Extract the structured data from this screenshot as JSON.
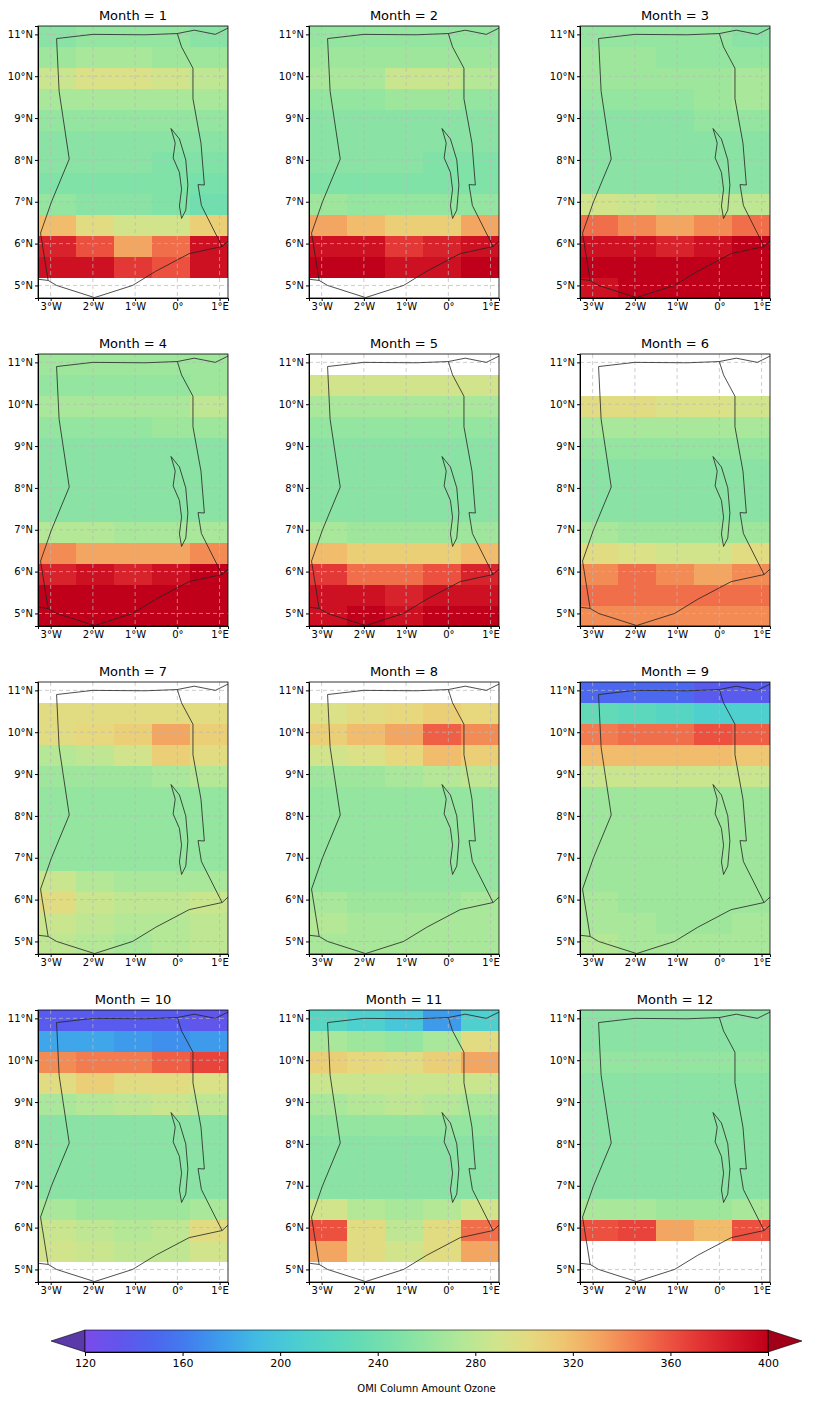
{
  "chart_data": {
    "type": "heatmap",
    "xlim": [
      -3.3,
      1.2
    ],
    "ylim": [
      4.7,
      11.2
    ],
    "xticks": [
      {
        "value": -3,
        "label": "3°W"
      },
      {
        "value": -2,
        "label": "2°W"
      },
      {
        "value": -1,
        "label": "1°W"
      },
      {
        "value": 0,
        "label": "0°"
      },
      {
        "value": 1,
        "label": "1°E"
      }
    ],
    "yticks": [
      {
        "value": 5,
        "label": "5°N"
      },
      {
        "value": 6,
        "label": "6°N"
      },
      {
        "value": 7,
        "label": "7°N"
      },
      {
        "value": 8,
        "label": "8°N"
      },
      {
        "value": 9,
        "label": "9°N"
      },
      {
        "value": 10,
        "label": "10°N"
      },
      {
        "value": 11,
        "label": "11°N"
      }
    ],
    "grid": true,
    "lon_edges": [
      -3.3,
      -2.4,
      -1.5,
      -0.6,
      0.3,
      1.2
    ],
    "lat_edges": [
      4.7,
      5.2,
      5.7,
      6.2,
      6.7,
      7.2,
      7.7,
      8.2,
      8.7,
      9.2,
      9.7,
      10.2,
      10.7,
      11.2
    ],
    "colorbar": {
      "label": "OMI Column Amount Ozone",
      "lim": [
        120,
        400
      ],
      "ticks": [
        120,
        160,
        200,
        240,
        280,
        320,
        360,
        400
      ]
    },
    "panels": [
      {
        "title": "Month = 1",
        "values": [
          [
            null,
            null,
            null,
            null,
            null
          ],
          [
            390,
            390,
            370,
            360,
            390
          ],
          [
            380,
            360,
            330,
            350,
            390
          ],
          [
            320,
            300,
            290,
            290,
            310
          ],
          [
            260,
            255,
            255,
            250,
            240
          ],
          [
            250,
            250,
            250,
            250,
            245
          ],
          [
            255,
            255,
            255,
            250,
            250
          ],
          [
            255,
            255,
            255,
            255,
            255
          ],
          [
            260,
            260,
            260,
            260,
            260
          ],
          [
            270,
            270,
            270,
            270,
            270
          ],
          [
            285,
            295,
            295,
            290,
            280
          ],
          [
            265,
            270,
            270,
            265,
            265
          ],
          [
            255,
            260,
            260,
            260,
            255
          ]
        ]
      },
      {
        "title": "Month = 2",
        "values": [
          [
            null,
            null,
            null,
            null,
            null
          ],
          [
            400,
            400,
            390,
            390,
            400
          ],
          [
            390,
            390,
            370,
            380,
            390
          ],
          [
            330,
            320,
            310,
            310,
            330
          ],
          [
            265,
            260,
            260,
            260,
            260
          ],
          [
            250,
            250,
            250,
            250,
            250
          ],
          [
            255,
            255,
            255,
            250,
            250
          ],
          [
            255,
            255,
            255,
            255,
            255
          ],
          [
            255,
            255,
            255,
            255,
            255
          ],
          [
            260,
            260,
            265,
            265,
            260
          ],
          [
            270,
            270,
            285,
            285,
            275
          ],
          [
            265,
            265,
            265,
            265,
            265
          ],
          [
            260,
            260,
            260,
            260,
            260
          ]
        ]
      },
      {
        "title": "Month = 3",
        "values": [
          [
            390,
            400,
            400,
            400,
            400
          ],
          [
            400,
            400,
            400,
            400,
            400
          ],
          [
            390,
            390,
            380,
            390,
            400
          ],
          [
            350,
            340,
            330,
            340,
            350
          ],
          [
            290,
            285,
            280,
            280,
            280
          ],
          [
            255,
            255,
            255,
            255,
            255
          ],
          [
            255,
            255,
            255,
            255,
            255
          ],
          [
            255,
            255,
            255,
            255,
            255
          ],
          [
            255,
            255,
            255,
            260,
            260
          ],
          [
            260,
            260,
            260,
            265,
            270
          ],
          [
            265,
            265,
            265,
            265,
            270
          ],
          [
            265,
            265,
            260,
            260,
            260
          ],
          [
            260,
            260,
            260,
            260,
            255
          ]
        ]
      },
      {
        "title": "Month = 4",
        "values": [
          [
            400,
            400,
            400,
            400,
            400
          ],
          [
            400,
            400,
            400,
            400,
            400
          ],
          [
            380,
            390,
            380,
            390,
            400
          ],
          [
            340,
            330,
            330,
            330,
            340
          ],
          [
            275,
            275,
            270,
            270,
            270
          ],
          [
            255,
            255,
            255,
            255,
            255
          ],
          [
            255,
            255,
            255,
            255,
            255
          ],
          [
            255,
            255,
            255,
            255,
            255
          ],
          [
            255,
            255,
            255,
            255,
            255
          ],
          [
            260,
            260,
            260,
            265,
            265
          ],
          [
            270,
            270,
            270,
            270,
            280
          ],
          [
            260,
            260,
            260,
            260,
            265
          ],
          [
            265,
            265,
            265,
            265,
            265
          ]
        ]
      },
      {
        "title": "Month = 5",
        "values": [
          [
            390,
            400,
            390,
            400,
            400
          ],
          [
            390,
            390,
            380,
            390,
            390
          ],
          [
            370,
            350,
            350,
            360,
            380
          ],
          [
            320,
            310,
            310,
            310,
            320
          ],
          [
            270,
            265,
            265,
            265,
            265
          ],
          [
            255,
            255,
            255,
            255,
            255
          ],
          [
            255,
            255,
            255,
            255,
            255
          ],
          [
            255,
            255,
            255,
            255,
            255
          ],
          [
            255,
            255,
            255,
            255,
            255
          ],
          [
            260,
            260,
            260,
            260,
            260
          ],
          [
            270,
            270,
            270,
            270,
            270
          ],
          [
            290,
            290,
            290,
            290,
            290
          ],
          [
            null,
            null,
            null,
            null,
            null
          ]
        ]
      },
      {
        "title": "Month = 6",
        "values": [
          [
            340,
            340,
            340,
            340,
            340
          ],
          [
            350,
            350,
            350,
            350,
            350
          ],
          [
            340,
            350,
            340,
            330,
            340
          ],
          [
            300,
            295,
            290,
            290,
            300
          ],
          [
            270,
            265,
            265,
            265,
            265
          ],
          [
            255,
            255,
            255,
            255,
            255
          ],
          [
            255,
            255,
            255,
            255,
            255
          ],
          [
            255,
            255,
            255,
            255,
            255
          ],
          [
            260,
            260,
            260,
            260,
            260
          ],
          [
            270,
            270,
            270,
            270,
            270
          ],
          [
            300,
            300,
            295,
            295,
            290
          ],
          [
            null,
            null,
            null,
            null,
            null
          ],
          [
            null,
            null,
            null,
            null,
            null
          ]
        ]
      },
      {
        "title": "Month = 7",
        "values": [
          [
            280,
            275,
            270,
            275,
            280
          ],
          [
            285,
            280,
            275,
            275,
            280
          ],
          [
            300,
            285,
            280,
            280,
            285
          ],
          [
            285,
            275,
            270,
            270,
            270
          ],
          [
            260,
            260,
            260,
            260,
            260
          ],
          [
            260,
            260,
            260,
            260,
            260
          ],
          [
            260,
            260,
            260,
            260,
            260
          ],
          [
            260,
            260,
            260,
            260,
            260
          ],
          [
            265,
            265,
            265,
            270,
            275
          ],
          [
            275,
            280,
            290,
            310,
            300
          ],
          [
            300,
            305,
            310,
            330,
            310
          ],
          [
            300,
            300,
            300,
            300,
            300
          ],
          [
            null,
            null,
            null,
            null,
            null
          ]
        ]
      },
      {
        "title": "Month = 8",
        "values": [
          [
            270,
            270,
            270,
            270,
            270
          ],
          [
            275,
            270,
            270,
            270,
            270
          ],
          [
            270,
            265,
            265,
            265,
            270
          ],
          [
            260,
            260,
            260,
            260,
            260
          ],
          [
            260,
            260,
            260,
            260,
            260
          ],
          [
            260,
            260,
            260,
            260,
            260
          ],
          [
            260,
            260,
            260,
            260,
            260
          ],
          [
            260,
            260,
            260,
            260,
            260
          ],
          [
            265,
            265,
            270,
            275,
            280
          ],
          [
            290,
            295,
            305,
            320,
            310
          ],
          [
            310,
            320,
            330,
            355,
            340
          ],
          [
            295,
            300,
            305,
            310,
            305
          ],
          [
            null,
            null,
            null,
            null,
            null
          ]
        ]
      },
      {
        "title": "Month = 9",
        "values": [
          [
            275,
            270,
            270,
            270,
            270
          ],
          [
            270,
            270,
            265,
            265,
            270
          ],
          [
            270,
            265,
            265,
            265,
            265
          ],
          [
            265,
            265,
            265,
            265,
            265
          ],
          [
            265,
            265,
            265,
            265,
            265
          ],
          [
            265,
            265,
            265,
            265,
            265
          ],
          [
            265,
            265,
            265,
            265,
            265
          ],
          [
            265,
            265,
            265,
            265,
            265
          ],
          [
            285,
            285,
            285,
            285,
            285
          ],
          [
            320,
            320,
            320,
            320,
            315
          ],
          [
            345,
            350,
            350,
            360,
            355
          ],
          [
            230,
            225,
            220,
            210,
            210
          ],
          [
            150,
            150,
            150,
            140,
            140
          ]
        ]
      },
      {
        "title": "Month = 10",
        "values": [
          [
            null,
            null,
            null,
            null,
            null
          ],
          [
            290,
            285,
            280,
            280,
            290
          ],
          [
            285,
            280,
            275,
            280,
            300
          ],
          [
            270,
            265,
            265,
            265,
            270
          ],
          [
            255,
            255,
            255,
            255,
            255
          ],
          [
            255,
            255,
            255,
            255,
            255
          ],
          [
            255,
            255,
            255,
            255,
            255
          ],
          [
            255,
            255,
            255,
            255,
            255
          ],
          [
            270,
            275,
            280,
            285,
            280
          ],
          [
            300,
            310,
            300,
            300,
            295
          ],
          [
            340,
            345,
            345,
            355,
            365
          ],
          [
            180,
            180,
            175,
            170,
            175
          ],
          [
            140,
            140,
            140,
            140,
            135
          ]
        ]
      },
      {
        "title": "Month = 11",
        "values": [
          [
            null,
            null,
            null,
            null,
            null
          ],
          [
            330,
            300,
            290,
            300,
            330
          ],
          [
            360,
            300,
            280,
            300,
            350
          ],
          [
            290,
            275,
            270,
            275,
            290
          ],
          [
            255,
            255,
            255,
            255,
            255
          ],
          [
            255,
            255,
            255,
            255,
            255
          ],
          [
            255,
            255,
            255,
            255,
            255
          ],
          [
            260,
            260,
            260,
            260,
            260
          ],
          [
            270,
            275,
            280,
            275,
            270
          ],
          [
            285,
            285,
            285,
            285,
            285
          ],
          [
            310,
            305,
            300,
            310,
            330
          ],
          [
            270,
            265,
            260,
            270,
            300
          ],
          [
            220,
            210,
            200,
            175,
            210
          ]
        ]
      },
      {
        "title": "Month = 12",
        "values": [
          [
            null,
            null,
            null,
            null,
            null
          ],
          [
            null,
            null,
            null,
            null,
            null
          ],
          [
            360,
            365,
            330,
            320,
            360
          ],
          [
            270,
            270,
            265,
            265,
            270
          ],
          [
            255,
            255,
            255,
            255,
            255
          ],
          [
            255,
            255,
            255,
            255,
            255
          ],
          [
            255,
            255,
            255,
            255,
            255
          ],
          [
            255,
            255,
            255,
            255,
            255
          ],
          [
            255,
            255,
            255,
            255,
            255
          ],
          [
            255,
            255,
            255,
            255,
            255
          ],
          [
            260,
            260,
            260,
            260,
            260
          ],
          [
            255,
            255,
            255,
            255,
            255
          ],
          [
            255,
            255,
            255,
            255,
            255
          ]
        ]
      }
    ]
  }
}
